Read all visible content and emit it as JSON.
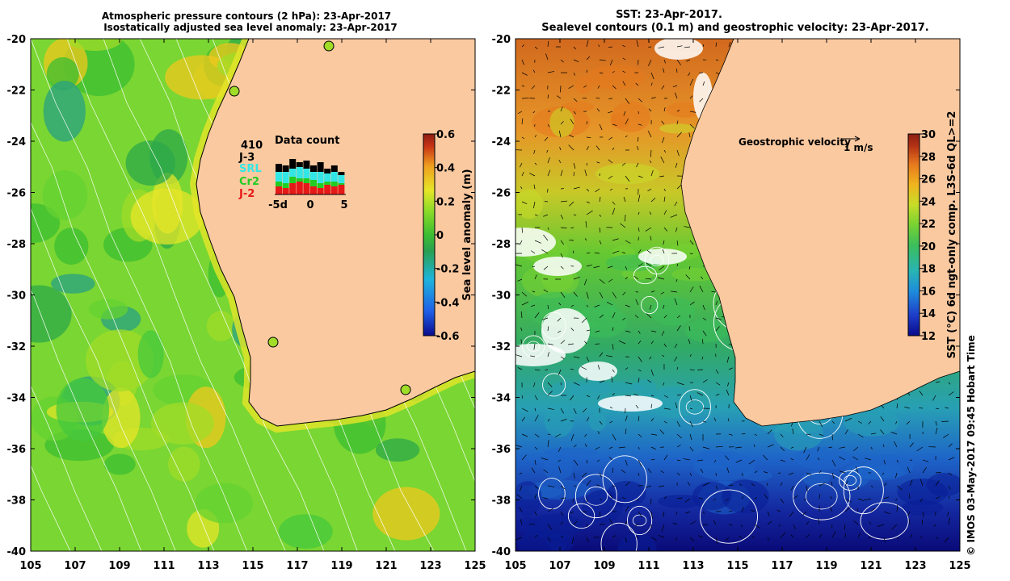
{
  "left_panel": {
    "title_line1": "Atmospheric pressure contours (2 hPa): 23-Apr-2017",
    "title_line2": "Isostatically adjusted sea level anomaly: 23-Apr-2017",
    "colorbar_label": "Sea level anomaly (m)",
    "colorbar_ticks": [
      "0.6",
      "0.4",
      "0.2",
      "0",
      "-0.2",
      "-0.4",
      "-0.6"
    ],
    "data_count": {
      "title": "Data count",
      "total": "410",
      "missions": [
        {
          "name": "J-3",
          "color": "#000000"
        },
        {
          "name": "SRL",
          "color": "#33e6e6"
        },
        {
          "name": "Cr2",
          "color": "#22cc22"
        },
        {
          "name": "J-2",
          "color": "#e61919"
        }
      ],
      "axis_ticks": [
        "-5d",
        "0",
        "5"
      ]
    }
  },
  "right_panel": {
    "title_line1": "SST: 23-Apr-2017.",
    "title_line2": "Sealevel contours (0.1 m) and geostrophic velocity: 23-Apr-2017.",
    "colorbar_label": "SST (°C) 6d ngt-only comp. L3S-6d QL>=2",
    "colorbar_ticks": [
      "30",
      "28",
      "26",
      "24",
      "22",
      "20",
      "18",
      "16",
      "14",
      "12"
    ],
    "velocity_legend": "Geostrophic velocity",
    "velocity_scale": "1 m/s"
  },
  "axes": {
    "y_ticks": [
      "-20",
      "-22",
      "-24",
      "-26",
      "-28",
      "-30",
      "-32",
      "-34",
      "-36",
      "-38",
      "-40"
    ],
    "x_ticks": [
      "105",
      "107",
      "109",
      "111",
      "113",
      "115",
      "117",
      "119",
      "121",
      "123",
      "125"
    ]
  },
  "credit": "© IMOS 03-May-2017 09:45 Hobart Time",
  "colors": {
    "land": "#fac9a0",
    "sla_colormap": [
      "#0a0a8c",
      "#1e5fe6",
      "#1eb4dc",
      "#28a050",
      "#3cbe32",
      "#8cdc28",
      "#e6e628",
      "#f0a01e",
      "#c83214",
      "#8c1e14"
    ],
    "sst_colormap": [
      "#0a0a8c",
      "#1e3cc8",
      "#1e8cdc",
      "#28b4b4",
      "#3cbe5a",
      "#78d232",
      "#c8dc28",
      "#f0b41e",
      "#e6781e",
      "#b43214",
      "#8c1e14"
    ]
  }
}
